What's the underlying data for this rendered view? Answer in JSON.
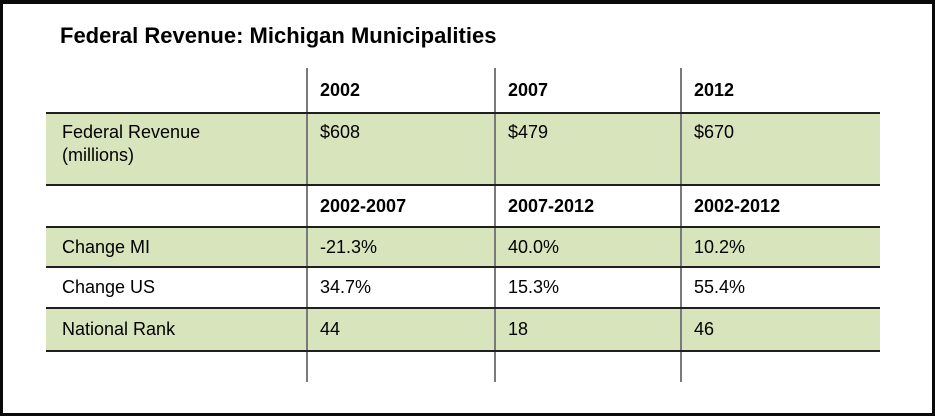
{
  "colors": {
    "highlight_green": "#d7e4bc",
    "horizontal_rule": "#1f1f1f",
    "vertical_rule": "#7a7a7a",
    "frame_border": "#0a0a0a",
    "text": "#000000",
    "background": "#ffffff"
  },
  "chart_data": {
    "type": "table",
    "title": "Federal Revenue: Michigan Municipalities",
    "year_columns": [
      "",
      "2002",
      "2007",
      "2012"
    ],
    "period_columns": [
      "",
      "2002-2007",
      "2007-2012",
      "2002-2012"
    ],
    "rows": [
      {
        "label": "Federal Revenue (millions)",
        "label_lines": [
          "Federal Revenue",
          "(millions)"
        ],
        "header_group": "year_columns",
        "values": [
          "$608",
          "$479",
          "$670"
        ],
        "highlighted": true
      },
      {
        "label": "Change MI",
        "header_group": "period_columns",
        "values": [
          "-21.3%",
          "40.0%",
          "10.2%"
        ],
        "highlighted": true
      },
      {
        "label": "Change US",
        "header_group": "period_columns",
        "values": [
          "34.7%",
          "15.3%",
          "55.4%"
        ],
        "highlighted": false
      },
      {
        "label": "National Rank",
        "header_group": "period_columns",
        "values": [
          "44",
          "18",
          "46"
        ],
        "highlighted": true
      }
    ]
  }
}
